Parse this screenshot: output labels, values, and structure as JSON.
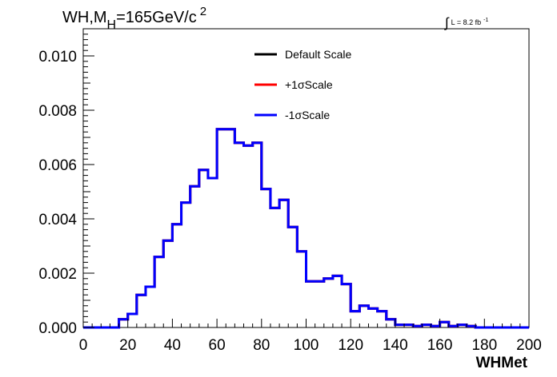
{
  "chart_data": {
    "type": "line",
    "style": "step-histogram",
    "title_parts": {
      "a": "WH,M",
      "sub": "H",
      "b": "=165GeV/c",
      "sup": "2"
    },
    "lumi_parts": {
      "integral": "∫",
      "text": "L = 8.2 fb",
      "sup": "-1"
    },
    "xlabel": "WHMet",
    "ylabel": "",
    "xlim": [
      0,
      200
    ],
    "ylim": [
      0,
      0.011
    ],
    "x_ticks": [
      "0",
      "20",
      "40",
      "60",
      "80",
      "100",
      "120",
      "140",
      "160",
      "180",
      "200"
    ],
    "x_tick_values": [
      0,
      20,
      40,
      60,
      80,
      100,
      120,
      140,
      160,
      180,
      200
    ],
    "y_ticks": [
      "0.000",
      "0.002",
      "0.004",
      "0.006",
      "0.008",
      "0.010"
    ],
    "y_tick_values": [
      0,
      0.002,
      0.004,
      0.006,
      0.008,
      0.01
    ],
    "grid": false,
    "legend_position": "top-center",
    "bin_edges": [
      0,
      4,
      8,
      12,
      16,
      20,
      24,
      28,
      32,
      36,
      40,
      44,
      48,
      52,
      56,
      60,
      64,
      68,
      72,
      76,
      80,
      84,
      88,
      92,
      96,
      100,
      104,
      108,
      112,
      116,
      120,
      124,
      128,
      132,
      136,
      140,
      144,
      148,
      152,
      156,
      160,
      164,
      168,
      172,
      176,
      180,
      184,
      188,
      192,
      196,
      200
    ],
    "series": [
      {
        "name": "Default Scale",
        "color": "#000000",
        "values": [
          0,
          0,
          0,
          0,
          0.0003,
          0.0005,
          0.0012,
          0.0015,
          0.0026,
          0.0032,
          0.0038,
          0.0046,
          0.0052,
          0.0058,
          0.0055,
          0.0073,
          0.0073,
          0.0068,
          0.0067,
          0.0068,
          0.0051,
          0.0044,
          0.0047,
          0.0037,
          0.0028,
          0.0017,
          0.0017,
          0.0018,
          0.0019,
          0.0016,
          0.0006,
          0.0008,
          0.0007,
          0.0006,
          0.0003,
          0.0001,
          0.0001,
          5e-05,
          0.0001,
          5e-05,
          0.0002,
          5e-05,
          0.0001,
          5e-05,
          0,
          0,
          0,
          0,
          0,
          0
        ]
      },
      {
        "name": "+1σScale",
        "color": "#ff0000",
        "values": [
          0,
          0,
          0,
          0,
          0.0003,
          0.0005,
          0.0012,
          0.0015,
          0.0026,
          0.0032,
          0.0038,
          0.0046,
          0.0052,
          0.0058,
          0.0055,
          0.0073,
          0.0073,
          0.0068,
          0.0067,
          0.0068,
          0.0051,
          0.0044,
          0.0047,
          0.0037,
          0.0028,
          0.0017,
          0.0017,
          0.0018,
          0.0019,
          0.0016,
          0.0006,
          0.0008,
          0.0007,
          0.0006,
          0.0003,
          0.0001,
          0.0001,
          5e-05,
          0.0001,
          5e-05,
          0.0002,
          5e-05,
          0.0001,
          5e-05,
          0,
          0,
          0,
          0,
          0,
          0
        ]
      },
      {
        "name": "-1σScale",
        "color": "#0000ff",
        "values": [
          0,
          0,
          0,
          0,
          0.0003,
          0.0005,
          0.0012,
          0.0015,
          0.0026,
          0.0032,
          0.0038,
          0.0046,
          0.0052,
          0.0058,
          0.0055,
          0.0073,
          0.0073,
          0.0068,
          0.0067,
          0.0068,
          0.0051,
          0.0044,
          0.0047,
          0.0037,
          0.0028,
          0.0017,
          0.0017,
          0.0018,
          0.0019,
          0.0016,
          0.0006,
          0.0008,
          0.0007,
          0.0006,
          0.0003,
          0.0001,
          0.0001,
          5e-05,
          0.0001,
          5e-05,
          0.0002,
          5e-05,
          0.0001,
          5e-05,
          0,
          0,
          0,
          0,
          0,
          0
        ]
      }
    ]
  }
}
